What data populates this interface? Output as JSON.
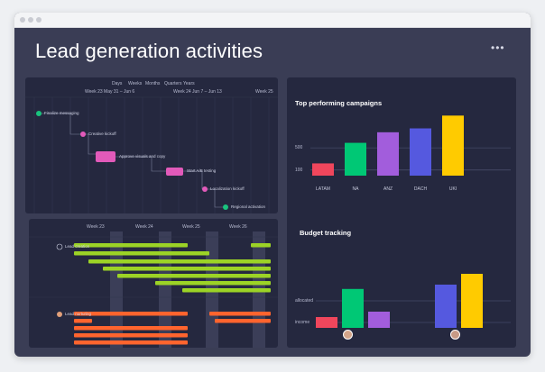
{
  "window": {
    "title": "Lead generation activities",
    "more_label": "•••"
  },
  "timeline": {
    "view_tabs": [
      "Days",
      "Weeks",
      "Months",
      "Quarters",
      "Years"
    ],
    "weeks": [
      "Week 23 May 31 – Jun 6",
      "Week 24 Jun 7 – Jun 13",
      "Week 25"
    ],
    "tasks": [
      {
        "label": "Finalize messaging",
        "color": "#19c37d"
      },
      {
        "label": "Creative kickoff",
        "color": "#e25aba"
      },
      {
        "label": "Approve visuals and copy",
        "color": "#e25aba"
      },
      {
        "label": "Start A/B testing",
        "color": "#e25aba"
      },
      {
        "label": "Localization kickoff",
        "color": "#e25aba"
      },
      {
        "label": "Regional activation",
        "color": "#19c37d"
      }
    ]
  },
  "gantt": {
    "weeks": [
      "Week 23",
      "Week 24",
      "Week 25",
      "Week 26"
    ],
    "groups": [
      {
        "label": "Lead creation",
        "color": "#9cd326"
      },
      {
        "label": "Lead nurturing",
        "color": "#ff642e"
      }
    ]
  },
  "campaigns": {
    "title": "Top performing campaigns",
    "chart_data": {
      "type": "bar",
      "title": "Top performing campaigns",
      "categories": [
        "LATAM",
        "NA",
        "ANZ",
        "DACH",
        "UKI"
      ],
      "values": [
        220,
        590,
        780,
        850,
        1080
      ],
      "colors": [
        "#f0465c",
        "#00c875",
        "#a25ddc",
        "#5559df",
        "#ffcb00"
      ],
      "ylim": [
        0,
        1150
      ],
      "gridlines": [
        {
          "label": "500",
          "value": 500
        },
        {
          "label": "100",
          "value": 100
        }
      ],
      "legend": "none",
      "grid": true
    }
  },
  "budget": {
    "title": "Budget tracking",
    "chart_data": {
      "type": "bar",
      "title": "Budget tracking",
      "categories": [
        "",
        ""
      ],
      "series": [
        {
          "values": [
            20,
            0
          ],
          "color": "#f0465c"
        },
        {
          "values": [
            72,
            0
          ],
          "color": "#00c875"
        },
        {
          "values": [
            30,
            0
          ],
          "color": "#a25ddc"
        },
        {
          "values": [
            0,
            80
          ],
          "color": "#5559df"
        },
        {
          "values": [
            0,
            100
          ],
          "color": "#ffcb00"
        }
      ],
      "ylim": [
        0,
        110
      ],
      "gridlines": [
        {
          "label": "allocated",
          "value": 50
        },
        {
          "label": "income",
          "value": 10
        }
      ],
      "legend": "none",
      "grid": true
    }
  }
}
